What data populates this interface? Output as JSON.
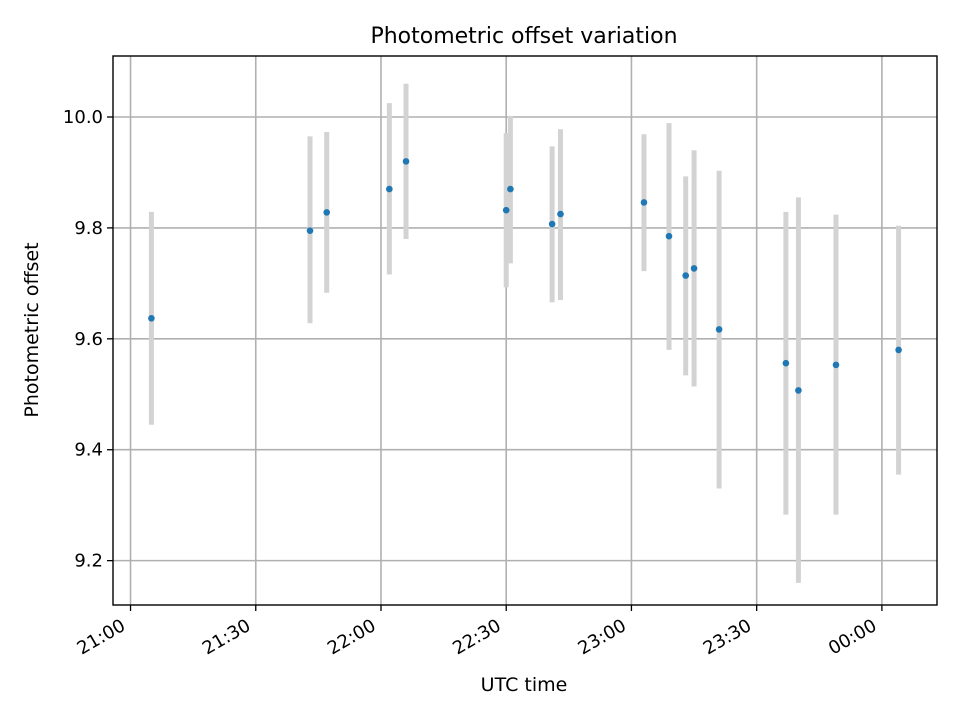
{
  "chart_data": {
    "type": "scatter",
    "title": "Photometric offset variation",
    "xlabel": "UTC time",
    "ylabel": "Photometric offset",
    "x_tick_labels": [
      "21:00",
      "21:30",
      "22:00",
      "22:30",
      "23:00",
      "23:30",
      "00:00"
    ],
    "y_tick_labels": [
      "9.2",
      "9.4",
      "9.6",
      "9.8",
      "10.0"
    ],
    "x_ticks_hours": [
      21.0,
      21.5,
      22.0,
      22.5,
      23.0,
      23.5,
      24.0
    ],
    "y_ticks": [
      9.2,
      9.4,
      9.6,
      9.8,
      10.0
    ],
    "xlim_hours": [
      20.93,
      24.22
    ],
    "ylim": [
      9.12,
      10.11
    ],
    "grid": true,
    "colors": {
      "marker": "#1f77b4",
      "errorbar": "#d3d3d3",
      "grid": "#b0b0b0"
    },
    "series": [
      {
        "points": [
          {
            "t": "21:05",
            "y": 9.637,
            "yerr_low": 9.445,
            "yerr_high": 9.829
          },
          {
            "t": "21:43",
            "y": 9.795,
            "yerr_low": 9.628,
            "yerr_high": 9.965
          },
          {
            "t": "21:47",
            "y": 9.828,
            "yerr_low": 9.683,
            "yerr_high": 9.973
          },
          {
            "t": "22:02",
            "y": 9.87,
            "yerr_low": 9.716,
            "yerr_high": 10.025
          },
          {
            "t": "22:06",
            "y": 9.92,
            "yerr_low": 9.78,
            "yerr_high": 10.06
          },
          {
            "t": "22:30",
            "y": 9.832,
            "yerr_low": 9.693,
            "yerr_high": 9.971
          },
          {
            "t": "22:31",
            "y": 9.87,
            "yerr_low": 9.736,
            "yerr_high": 10.002
          },
          {
            "t": "22:41",
            "y": 9.807,
            "yerr_low": 9.666,
            "yerr_high": 9.947
          },
          {
            "t": "22:43",
            "y": 9.825,
            "yerr_low": 9.67,
            "yerr_high": 9.978
          },
          {
            "t": "23:03",
            "y": 9.846,
            "yerr_low": 9.722,
            "yerr_high": 9.969
          },
          {
            "t": "23:09",
            "y": 9.785,
            "yerr_low": 9.58,
            "yerr_high": 9.989
          },
          {
            "t": "23:13",
            "y": 9.714,
            "yerr_low": 9.534,
            "yerr_high": 9.893
          },
          {
            "t": "23:15",
            "y": 9.727,
            "yerr_low": 9.514,
            "yerr_high": 9.94
          },
          {
            "t": "23:21",
            "y": 9.617,
            "yerr_low": 9.33,
            "yerr_high": 9.903
          },
          {
            "t": "23:37",
            "y": 9.556,
            "yerr_low": 9.283,
            "yerr_high": 9.829
          },
          {
            "t": "23:40",
            "y": 9.507,
            "yerr_low": 9.16,
            "yerr_high": 9.855
          },
          {
            "t": "23:49",
            "y": 9.553,
            "yerr_low": 9.283,
            "yerr_high": 9.824
          },
          {
            "t": "00:04",
            "y": 9.58,
            "yerr_low": 9.355,
            "yerr_high": 9.804
          }
        ]
      }
    ]
  }
}
